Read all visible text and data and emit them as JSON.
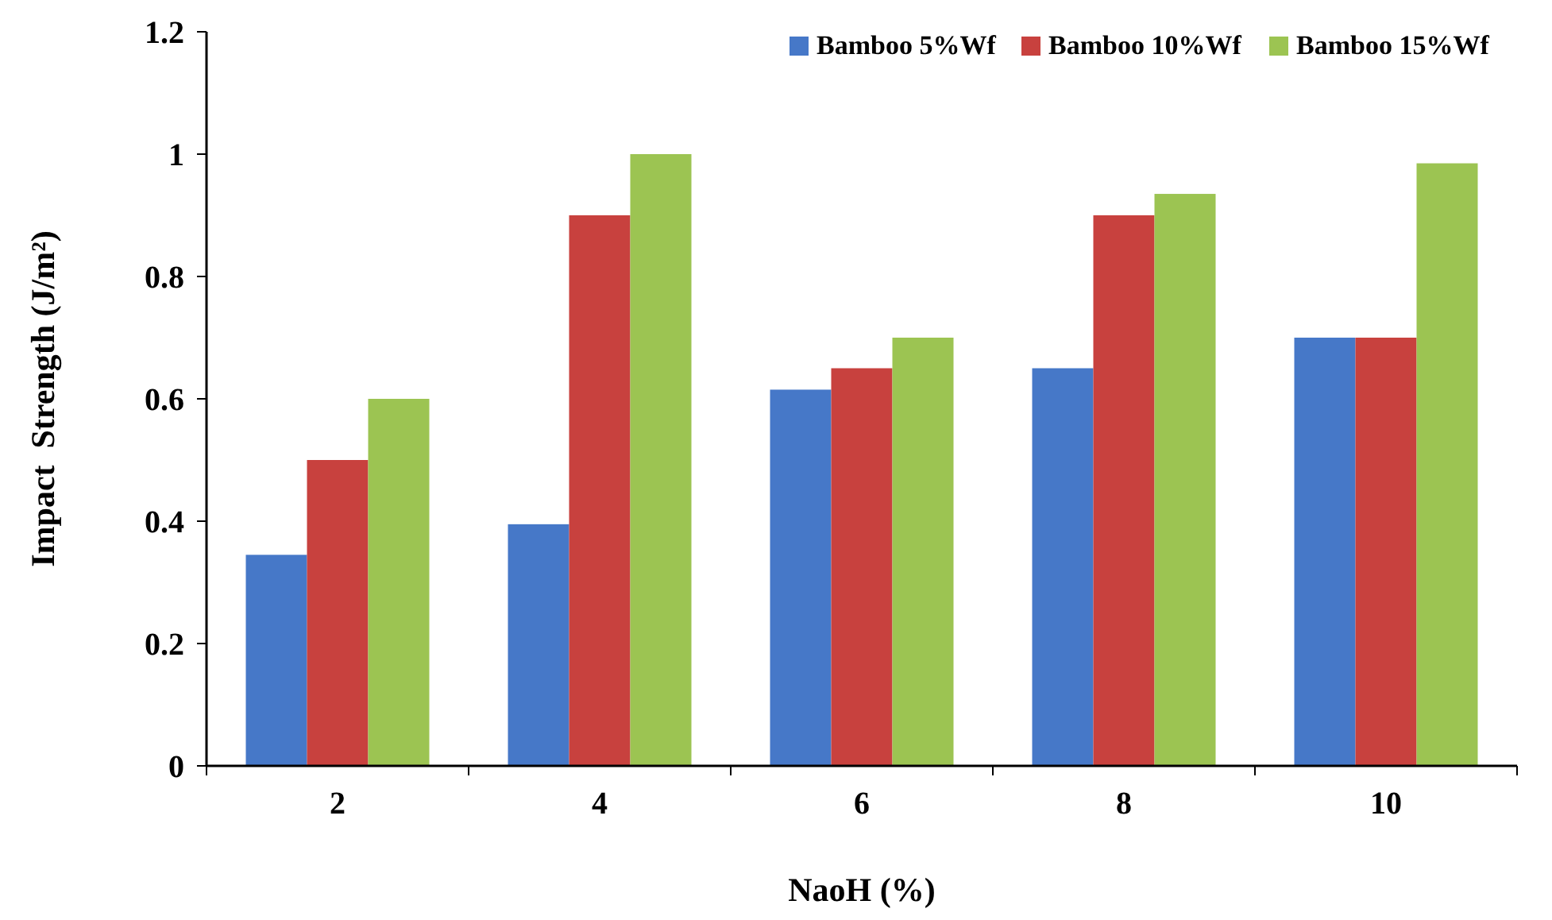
{
  "chart_data": {
    "type": "bar",
    "xlabel": "NaoH (%)",
    "ylabel": "Impact  Strength (J/m²)",
    "categories": [
      "2",
      "4",
      "6",
      "8",
      "10"
    ],
    "series": [
      {
        "name": "Bamboo 5%Wf",
        "color": "#4678c8",
        "values": [
          0.345,
          0.395,
          0.615,
          0.65,
          0.7
        ]
      },
      {
        "name": "Bamboo 10%Wf",
        "color": "#c8413e",
        "values": [
          0.5,
          0.9,
          0.65,
          0.9,
          0.7
        ]
      },
      {
        "name": "Bamboo 15%Wf",
        "color": "#9cc452",
        "values": [
          0.6,
          1.0,
          0.7,
          0.935,
          0.985
        ]
      }
    ],
    "ylim": [
      0,
      1.2
    ],
    "yticks": [
      0,
      0.2,
      0.4,
      0.6,
      0.8,
      1,
      1.2
    ],
    "grid": false,
    "legend": "top right"
  }
}
